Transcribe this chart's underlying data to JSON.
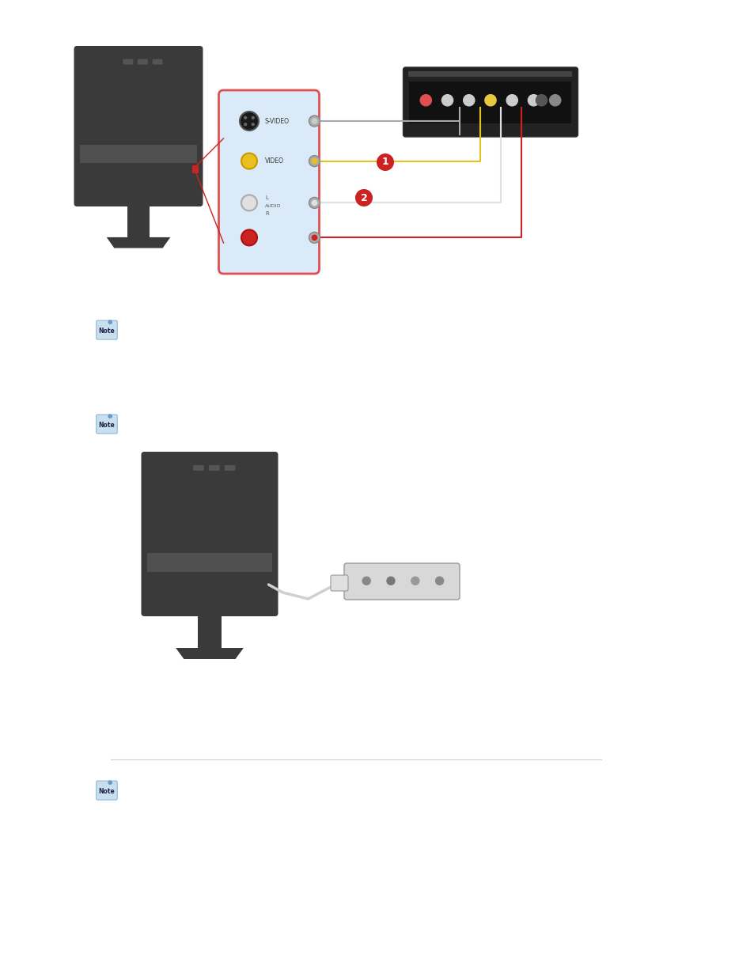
{
  "bg_color": "#ffffff",
  "fig_width": 9.54,
  "fig_height": 12.35,
  "connector_panel_bg": "#daeaf8",
  "connector_panel_border": "#e05050",
  "badge_color": "#cc2222",
  "separator_color": "#cccccc",
  "monitor_body_color": "#3a3a3a",
  "monitor_dark": "#2a2a2a",
  "monitor_mid": "#4a4a4a",
  "avbox_color": "#222222",
  "avbox_panel": "#1a1a1a",
  "note_bg": "#c8dff0",
  "note_border": "#90b8d8",
  "label_svideo": "S-VIDEO",
  "label_video": "VIDEO",
  "label_audio": "AUDIO",
  "label_l": "L",
  "label_r": "R"
}
